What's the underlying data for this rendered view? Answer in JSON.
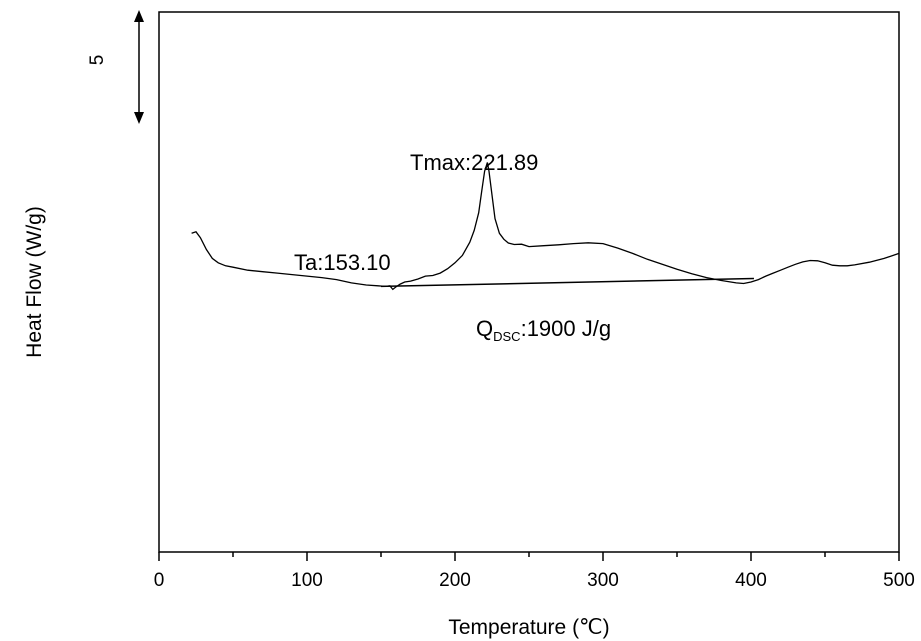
{
  "chart_data": {
    "type": "line",
    "title": "",
    "xlabel": "Temperature (℃)",
    "ylabel": "Heat Flow (W/g)",
    "xlim": [
      0,
      500
    ],
    "ylim": [
      -9.5,
      8.8
    ],
    "x_ticks": [
      "0",
      "100",
      "200",
      "300",
      "400",
      "500"
    ],
    "scale_bar": {
      "label": "5",
      "value": 5
    },
    "grid": false,
    "legend": "none",
    "line_color": "#000000",
    "series": [
      {
        "x": [
          22,
          25,
          28,
          32,
          36,
          40,
          45,
          50,
          60,
          70,
          80,
          90,
          100,
          110,
          120,
          130,
          140,
          148,
          153,
          156,
          158,
          160,
          163,
          166,
          170,
          175,
          180,
          185,
          190,
          195,
          200,
          205,
          210,
          213,
          216,
          218,
          220,
          221.89,
          223,
          225,
          227,
          230,
          233,
          236,
          240,
          245,
          250,
          260,
          270,
          280,
          290,
          300,
          310,
          320,
          330,
          340,
          350,
          360,
          370,
          380,
          390,
          395,
          400,
          405,
          410,
          415,
          420,
          425,
          430,
          435,
          440,
          445,
          450,
          455,
          460,
          465,
          470,
          480,
          490,
          500
        ],
        "y": [
          1.3,
          1.35,
          1.15,
          0.75,
          0.45,
          0.3,
          0.2,
          0.15,
          0.05,
          0.0,
          -0.05,
          -0.1,
          -0.15,
          -0.2,
          -0.27,
          -0.38,
          -0.45,
          -0.48,
          -0.5,
          -0.48,
          -0.6,
          -0.52,
          -0.42,
          -0.35,
          -0.32,
          -0.25,
          -0.15,
          -0.13,
          -0.05,
          0.1,
          0.3,
          0.55,
          1.0,
          1.4,
          2.0,
          2.7,
          3.4,
          3.7,
          3.4,
          2.6,
          1.8,
          1.3,
          1.1,
          0.97,
          0.92,
          0.93,
          0.85,
          0.88,
          0.91,
          0.95,
          0.98,
          0.95,
          0.8,
          0.62,
          0.42,
          0.25,
          0.08,
          -0.07,
          -0.2,
          -0.3,
          -0.38,
          -0.4,
          -0.35,
          -0.27,
          -0.15,
          -0.05,
          0.05,
          0.15,
          0.25,
          0.33,
          0.38,
          0.37,
          0.3,
          0.22,
          0.2,
          0.2,
          0.23,
          0.32,
          0.45,
          0.62
        ]
      }
    ],
    "baseline": {
      "x": [
        150,
        402
      ],
      "y": [
        -0.5,
        -0.23
      ]
    },
    "annotations": [
      {
        "text": "Tmax:221.89",
        "x": 221.89,
        "y": 3.7
      },
      {
        "text": "Ta:153.10",
        "x": 153.1,
        "y": -0.5
      },
      {
        "text_main": "Q",
        "text_sub": "DSC",
        "text_rest": ":1900 J/g"
      }
    ]
  }
}
